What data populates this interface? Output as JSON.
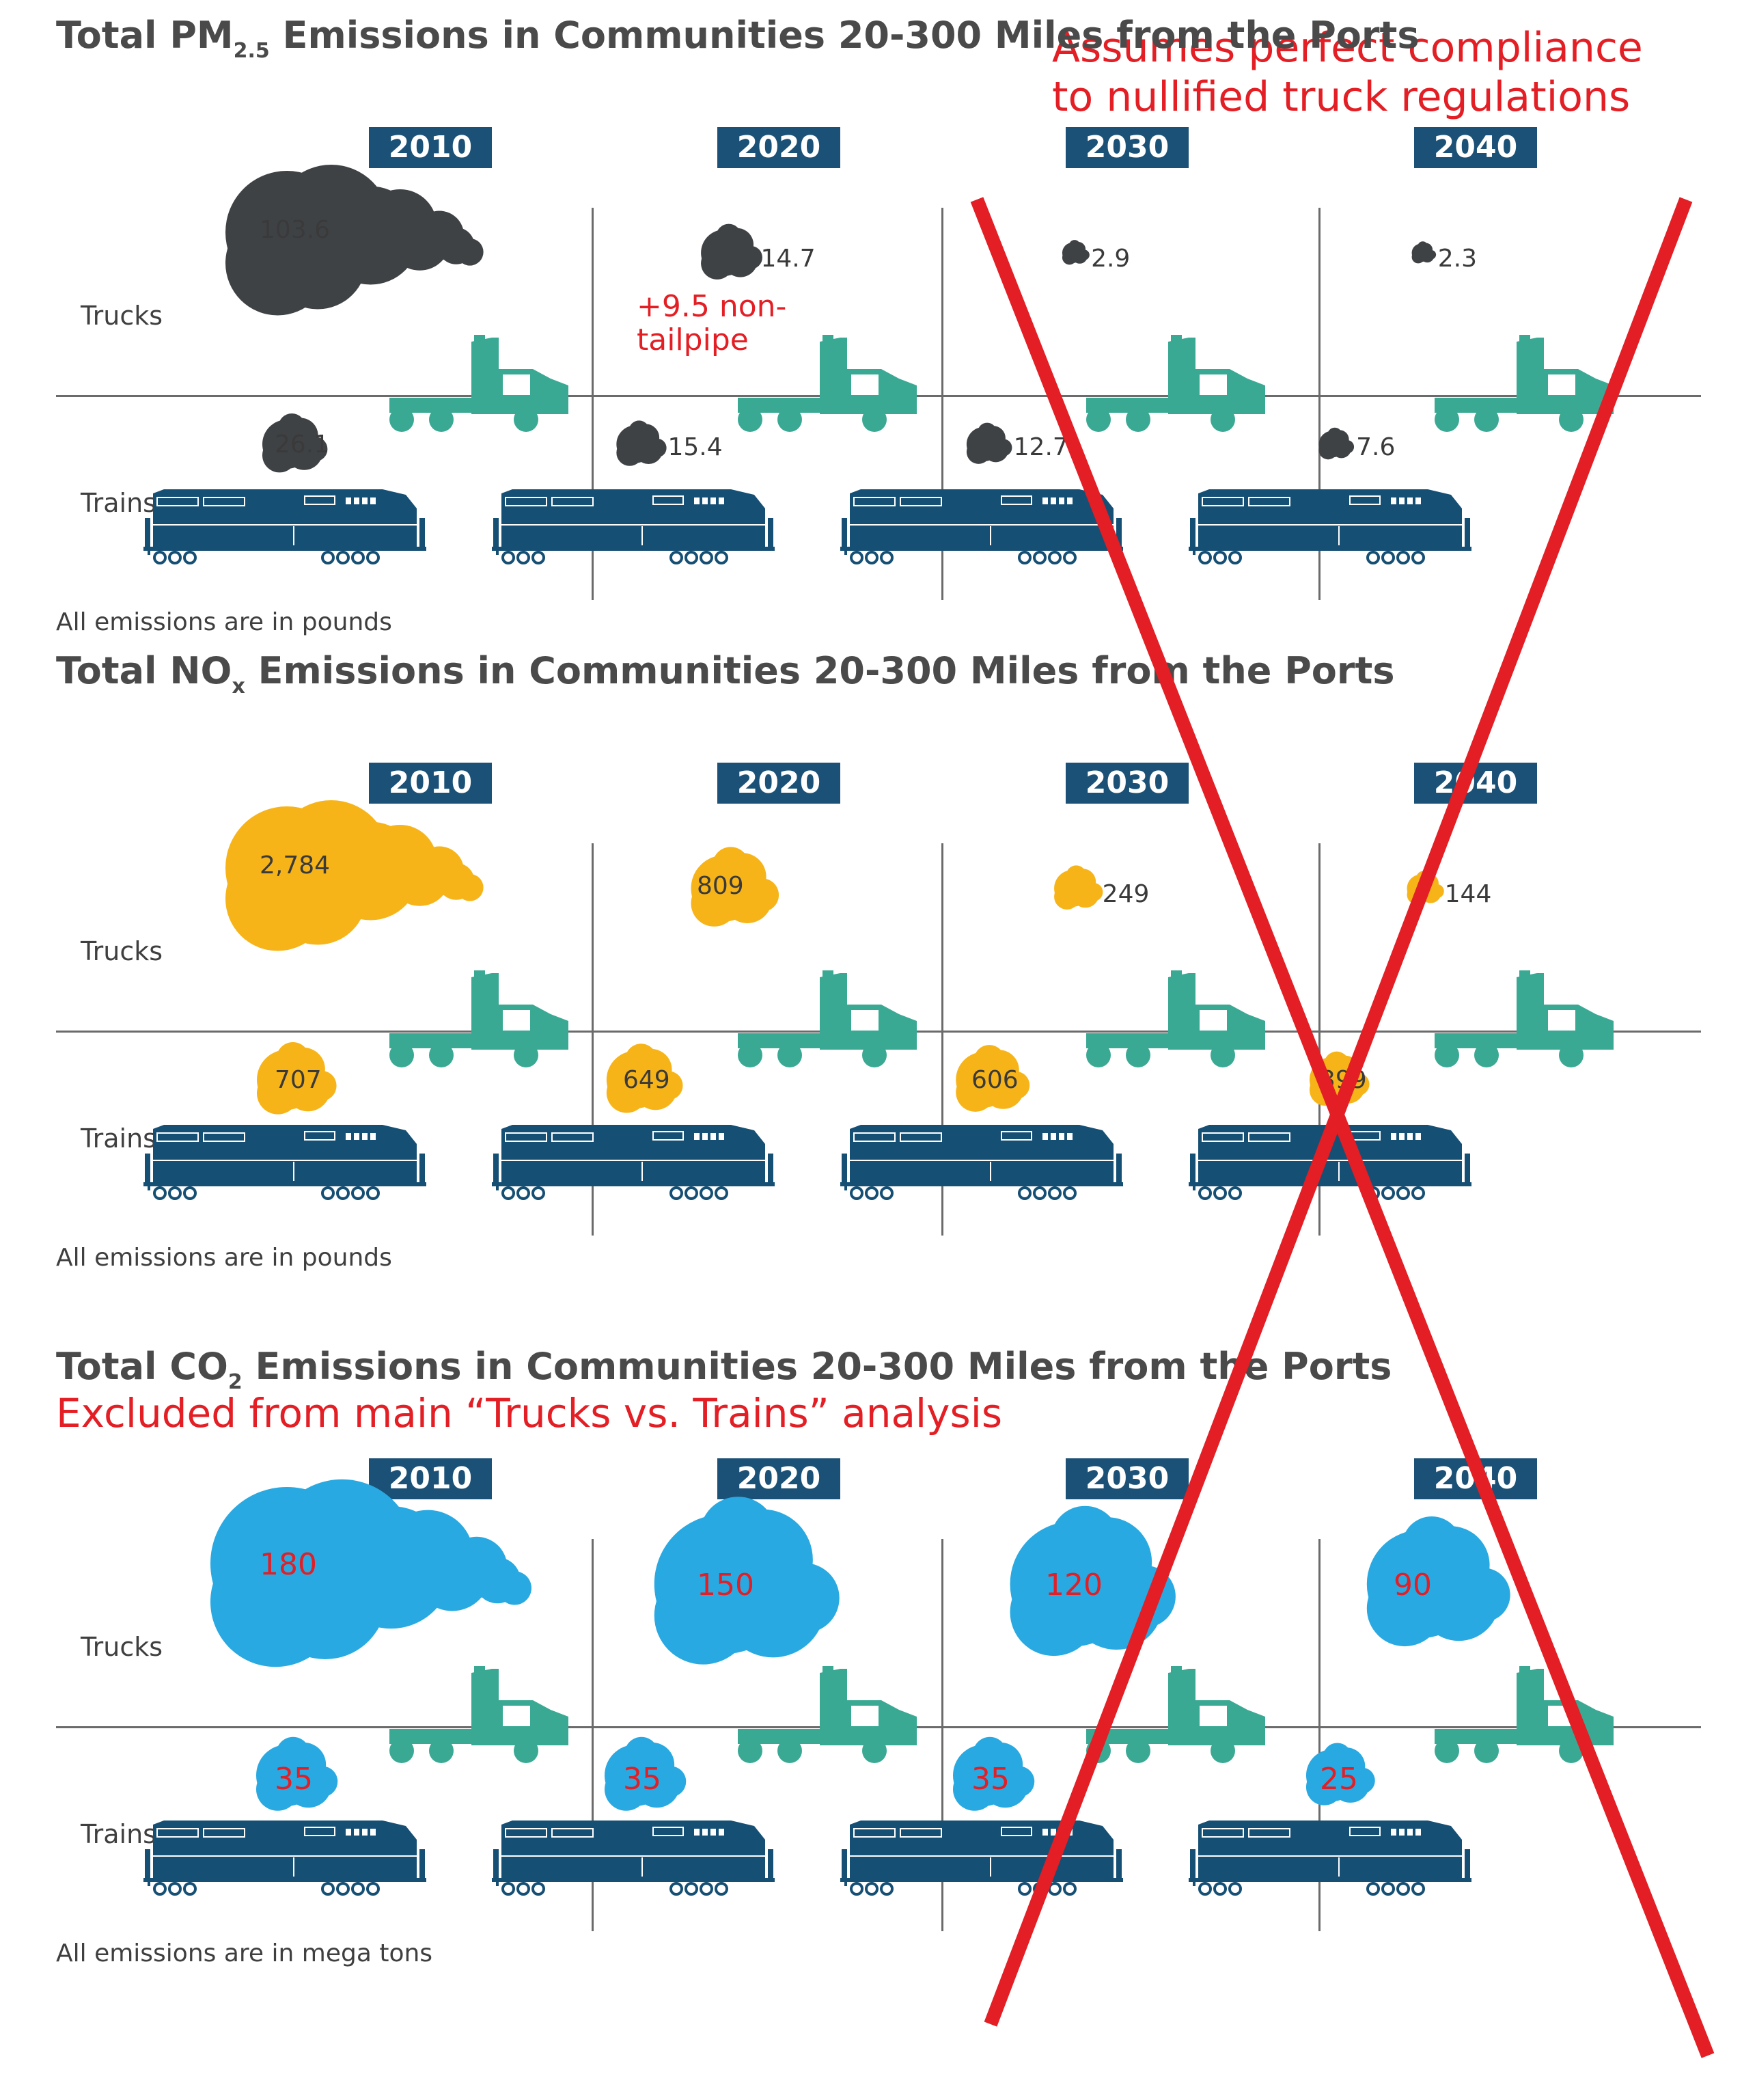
{
  "annotations": {
    "compliance_line1": "Assumes perfect compliance",
    "compliance_line2": "to nullified truck regulations",
    "non_tailpipe_line1": "+9.5 non-",
    "non_tailpipe_line2": "tailpipe",
    "excluded": "Excluded from main “Trucks vs. Trains” analysis"
  },
  "row_labels": {
    "trucks": "Trucks",
    "trains": "Trains"
  },
  "colors": {
    "pm_cloud": "#3f4245",
    "nox_cloud": "#f7b418",
    "co2_cloud": "#29a9e1",
    "truck": "#3aa994",
    "train": "#164f74",
    "year_box": "#1b5176",
    "annotation": "#e31e24",
    "strike": "#e31e24"
  },
  "chart_data": [
    {
      "type": "bar",
      "title_main": "Total PM",
      "title_sub": "2.5",
      "title_rest": "Emissions in Communities 20-300 Miles from the Ports",
      "categories": [
        "2010",
        "2020",
        "2030",
        "2040"
      ],
      "series": [
        {
          "name": "Trucks",
          "values": [
            103.6,
            14.7,
            2.9,
            2.3
          ],
          "labels": [
            "103.6",
            "14.7",
            "2.9",
            "2.3"
          ]
        },
        {
          "name": "Trains",
          "values": [
            26.1,
            15.4,
            12.7,
            7.6
          ],
          "labels": [
            "26.1",
            "15.4",
            "12.7",
            "7.6"
          ]
        }
      ],
      "note": "All emissions are in pounds"
    },
    {
      "type": "bar",
      "title_main": "Total NO",
      "title_sub": "x",
      "title_rest": "Emissions in Communities 20-300 Miles from the Ports",
      "categories": [
        "2010",
        "2020",
        "2030",
        "2040"
      ],
      "series": [
        {
          "name": "Trucks",
          "values": [
            2784,
            809,
            249,
            144
          ],
          "labels": [
            "2,784",
            "809",
            "249",
            "144"
          ]
        },
        {
          "name": "Trains",
          "values": [
            707,
            649,
            606,
            399
          ],
          "labels": [
            "707",
            "649",
            "606",
            "399"
          ]
        }
      ],
      "note": "All emissions are in pounds"
    },
    {
      "type": "bar",
      "title_main": "Total CO",
      "title_sub": "2",
      "title_rest": "Emissions in Communities 20-300 Miles from the Ports",
      "categories": [
        "2010",
        "2020",
        "2030",
        "2040"
      ],
      "series": [
        {
          "name": "Trucks",
          "values": [
            180,
            150,
            120,
            90
          ],
          "labels": [
            "180",
            "150",
            "120",
            "90"
          ]
        },
        {
          "name": "Trains",
          "values": [
            35,
            35,
            35,
            25
          ],
          "labels": [
            "35",
            "35",
            "35",
            "25"
          ]
        }
      ],
      "note": "All emissions are in mega tons"
    }
  ]
}
